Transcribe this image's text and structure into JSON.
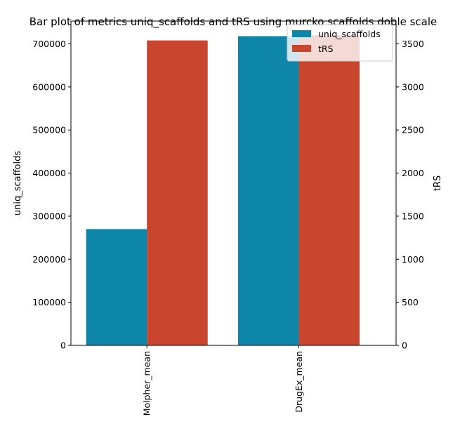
{
  "chart_data": {
    "type": "bar",
    "title": "Bar plot of metrics uniq_scaffolds and tRS using murcko scaffolds doble scale",
    "categories": [
      "Molpher_mean",
      "DrugEx_mean"
    ],
    "series": [
      {
        "name": "uniq_scaffolds",
        "axis": "left",
        "color": "#0e86aa",
        "values": [
          270000,
          718000
        ]
      },
      {
        "name": "tRS",
        "axis": "right",
        "color": "#c9452d",
        "values": [
          3540,
          3600
        ]
      }
    ],
    "ylabel_left": "uniq_scaffolds",
    "ylabel_right": "tRS",
    "ylim_left": [
      0,
      753000
    ],
    "ylim_right": [
      0,
      3765
    ],
    "yticks_left": [
      "0",
      "100000",
      "200000",
      "300000",
      "400000",
      "500000",
      "600000",
      "700000"
    ],
    "yticks_right": [
      "0",
      "500",
      "1000",
      "1500",
      "2000",
      "2500",
      "3000",
      "3500"
    ],
    "grid": false,
    "legend": "top-right"
  }
}
